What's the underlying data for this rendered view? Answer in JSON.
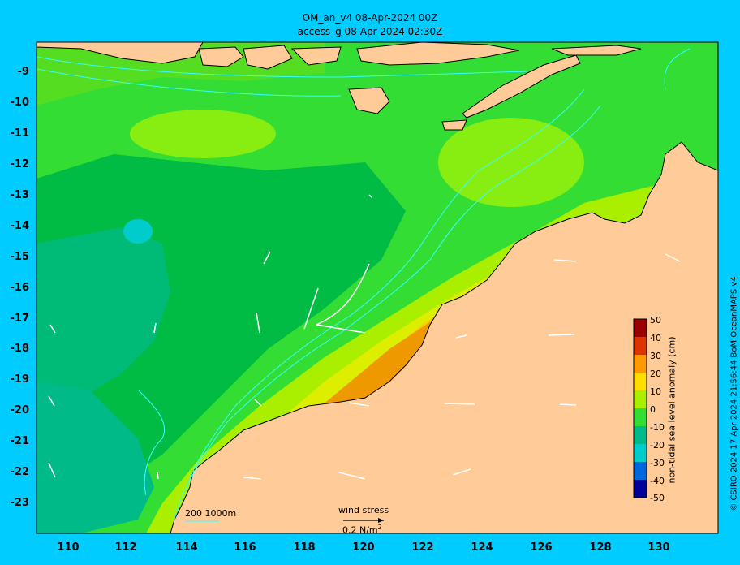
{
  "header": {
    "line1": "OM_an_v4  08-Apr-2024 00Z",
    "line2": "access_g 08-Apr-2024 02:30Z"
  },
  "axes": {
    "lat_ticks": [
      "-9",
      "-10",
      "-11",
      "-12",
      "-13",
      "-14",
      "-15",
      "-16",
      "-17",
      "-18",
      "-19",
      "-20",
      "-21",
      "-22",
      "-23"
    ],
    "lon_ticks": [
      "110",
      "112",
      "114",
      "116",
      "118",
      "120",
      "122",
      "124",
      "126",
      "128",
      "130"
    ]
  },
  "colorbar": {
    "title": "non-tidal sea level anomaly (cm)",
    "ticks": [
      "50",
      "40",
      "30",
      "20",
      "10",
      "0",
      "-10",
      "-20",
      "-30",
      "-40",
      "-50"
    ]
  },
  "legend": {
    "contours": "200  1000m",
    "wind_label": "wind stress",
    "wind_scale": "0.2 N/m",
    "wind_scale_sup": "2"
  },
  "credit": "© CSIRO 2024  17 Apr 2024 21:56:44 BoM OceanMAPS v4",
  "colors": {
    "background": "#00ccff",
    "land": "#ffcc99",
    "contour": "#33ffff",
    "arrow": "#ffffff"
  }
}
